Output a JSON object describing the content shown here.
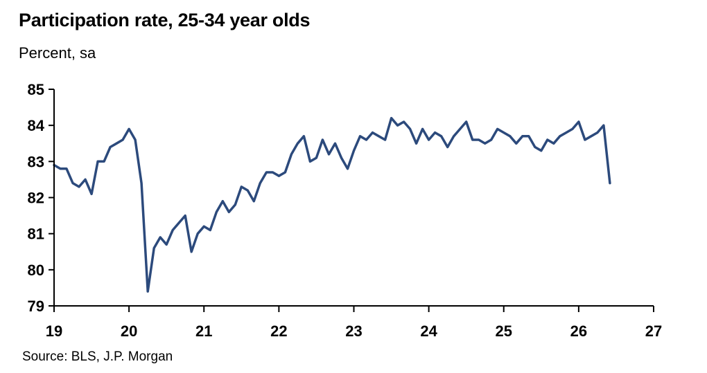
{
  "title": "Participation rate, 25-34 year olds",
  "subtitle": "Percent, sa",
  "source": "Source: BLS, J.P. Morgan",
  "colors": {
    "line": "#2C4A7C",
    "axis": "#000000"
  },
  "chart_data": {
    "type": "line",
    "title": "Participation rate, 25-34 year olds",
    "subtitle": "Percent, sa",
    "xlabel": "",
    "ylabel": "",
    "xlim": [
      19,
      27
    ],
    "ylim": [
      79,
      85
    ],
    "x_ticks": [
      "19",
      "20",
      "21",
      "22",
      "23",
      "24",
      "25",
      "26",
      "27"
    ],
    "y_ticks": [
      "85",
      "84",
      "83",
      "82",
      "81",
      "80",
      "79"
    ],
    "grid": false,
    "legend": "none",
    "series": [
      {
        "start_year": 19,
        "frequency": "monthly",
        "values": [
          82.9,
          82.8,
          82.8,
          82.4,
          82.3,
          82.5,
          82.1,
          83.0,
          83.0,
          83.4,
          83.5,
          83.6,
          83.9,
          83.6,
          82.4,
          79.4,
          80.6,
          80.9,
          80.7,
          81.1,
          81.3,
          81.5,
          80.5,
          81.0,
          81.2,
          81.1,
          81.6,
          81.9,
          81.6,
          81.8,
          82.3,
          82.2,
          81.9,
          82.4,
          82.7,
          82.7,
          82.6,
          82.7,
          83.2,
          83.5,
          83.7,
          83.0,
          83.1,
          83.6,
          83.2,
          83.5,
          83.1,
          82.8,
          83.3,
          83.7,
          83.6,
          83.8,
          83.7,
          83.6,
          84.2,
          84.0,
          84.1,
          83.9,
          83.5,
          83.9,
          83.6,
          83.8,
          83.7,
          83.4,
          83.7,
          83.9,
          84.1,
          83.6,
          83.6,
          83.5,
          83.6,
          83.9,
          83.8,
          83.7,
          83.5,
          83.7,
          83.7,
          83.4,
          83.3,
          83.6,
          83.5,
          83.7,
          83.8,
          83.9,
          84.1,
          83.6,
          83.7,
          83.8,
          84.0,
          82.4
        ]
      }
    ]
  }
}
